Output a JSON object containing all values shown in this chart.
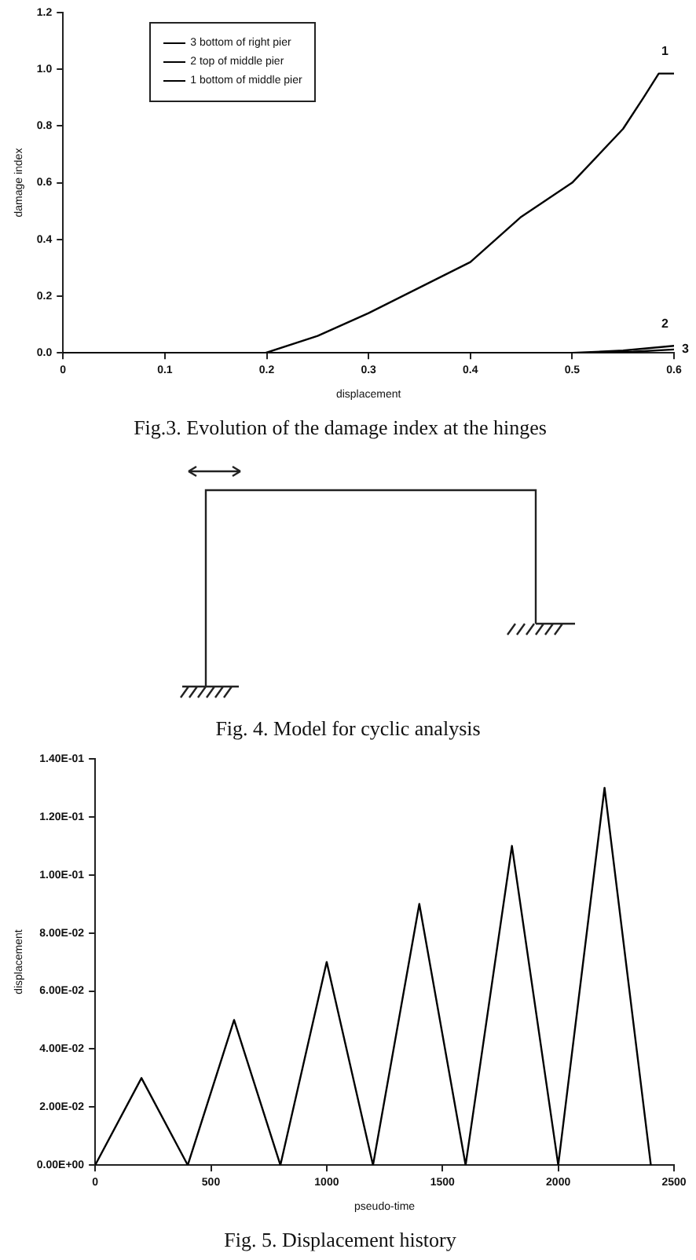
{
  "chart_data": [
    {
      "type": "line",
      "title": "Fig.3. Evolution of the damage index at the hinges",
      "xlabel": "displacement",
      "ylabel": "damage index",
      "xlim": [
        0,
        0.6
      ],
      "xticks": [
        0,
        0.1,
        0.2,
        0.3,
        0.4,
        0.5,
        0.6
      ],
      "ylim": [
        0,
        1.2
      ],
      "yticks": [
        {
          "value": 0,
          "label": "0.0"
        },
        {
          "value": 0.2,
          "label": "0.2"
        },
        {
          "value": 0.4,
          "label": "0.4"
        },
        {
          "value": 0.6,
          "label": "0.6"
        },
        {
          "value": 0.8,
          "label": "0.8"
        },
        {
          "value": 1,
          "label": "1.0"
        },
        {
          "value": 1.2,
          "label": "1.2"
        }
      ],
      "grid": false,
      "legend": "top left",
      "marker": "none",
      "line_style": "solid",
      "series": [
        {
          "name": "3 bottom of right pier",
          "color": "#000000",
          "x": [
            0,
            0.52,
            0.56,
            0.6
          ],
          "values": [
            0,
            0,
            0.004,
            0.012
          ]
        },
        {
          "name": "2 top of middle pier",
          "color": "#000000",
          "x": [
            0,
            0.5,
            0.55,
            0.6
          ],
          "values": [
            0,
            0,
            0.008,
            0.025
          ]
        },
        {
          "name": "1 bottom of middle pier",
          "color": "#000000",
          "x": [
            0,
            0.199,
            0.25,
            0.3,
            0.35,
            0.4,
            0.45,
            0.5,
            0.55,
            0.57,
            0.585,
            0.6
          ],
          "values": [
            0,
            0,
            0.06,
            0.14,
            0.23,
            0.32,
            0.48,
            0.6,
            0.79,
            0.9,
            0.985,
            0.985
          ]
        }
      ],
      "annotations": [
        "1",
        "2",
        "3"
      ]
    },
    {
      "type": "other",
      "title": "Fig. 4. Model for cyclic analysis"
    },
    {
      "type": "line",
      "title": "Fig. 5. Displacement history",
      "xlabel": "pseudo-time",
      "ylabel": "displacement",
      "xlim": [
        0,
        2500
      ],
      "xticks": [
        0,
        500,
        1000,
        1500,
        2000,
        2500
      ],
      "ylim": [
        0,
        0.14
      ],
      "yticks": [
        {
          "value": 0,
          "label": "0.00E+00"
        },
        {
          "value": 0.02,
          "label": "2.00E-02"
        },
        {
          "value": 0.04,
          "label": "4.00E-02"
        },
        {
          "value": 0.06,
          "label": "6.00E-02"
        },
        {
          "value": 0.08,
          "label": "8.00E-02"
        },
        {
          "value": 0.1,
          "label": "1.00E-01"
        },
        {
          "value": 0.12,
          "label": "1.20E-01"
        },
        {
          "value": 0.14,
          "label": "1.40E-01"
        }
      ],
      "grid": false,
      "marker": "none",
      "line_style": "solid",
      "series": [
        {
          "color": "#000000",
          "x": [
            0,
            200,
            400,
            600,
            800,
            1000,
            1200,
            1400,
            1600,
            1800,
            2000,
            2200,
            2400
          ],
          "values": [
            0,
            0.03,
            0,
            0.05,
            0,
            0.07,
            0,
            0.09,
            0,
            0.11,
            0,
            0.13,
            0
          ]
        }
      ]
    }
  ]
}
